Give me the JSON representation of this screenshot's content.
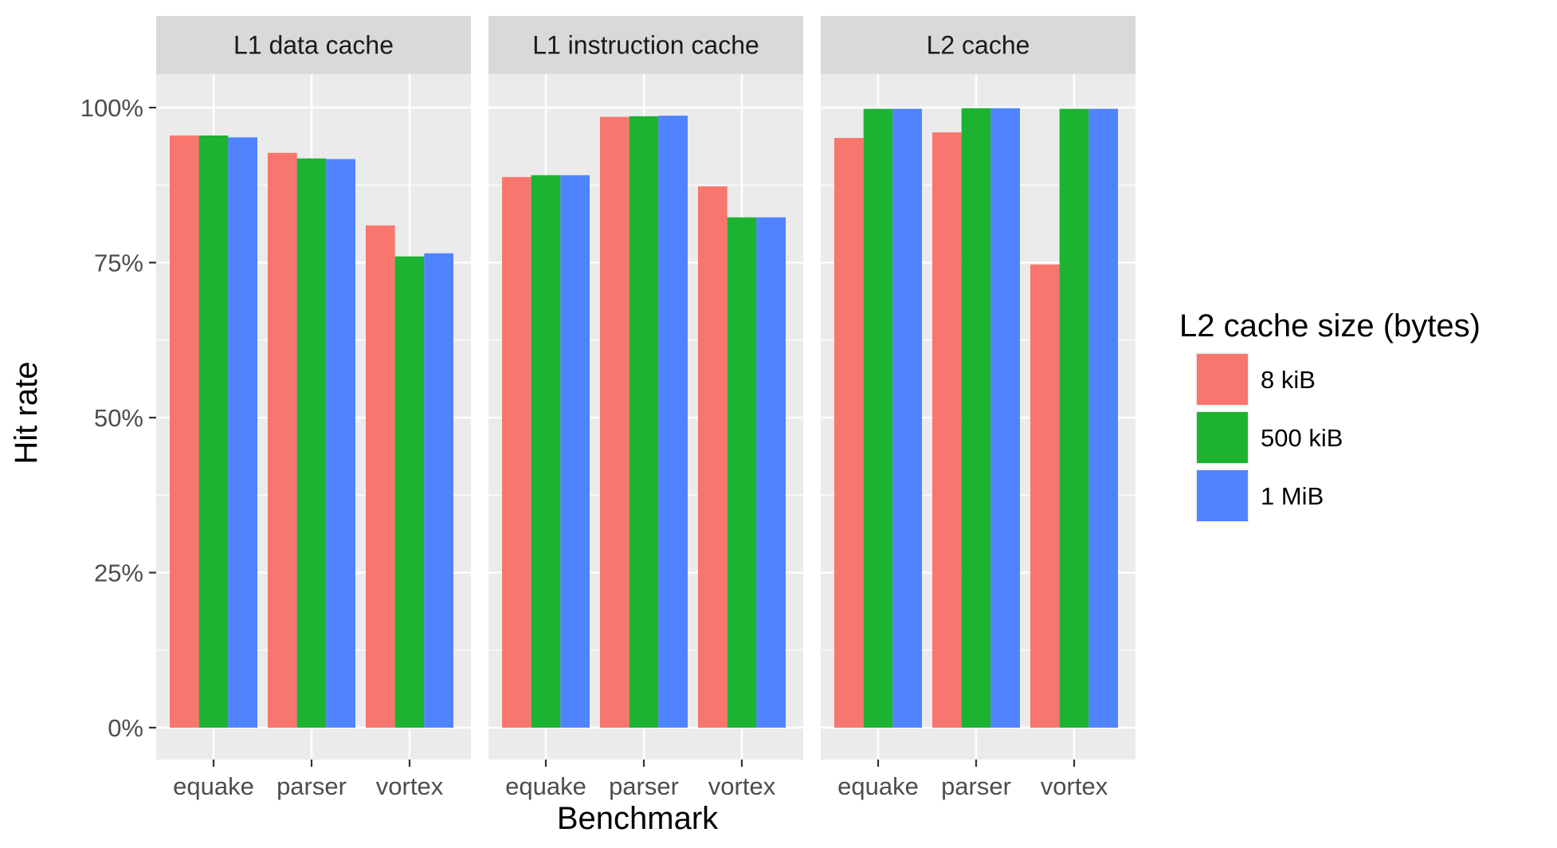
{
  "chart_data": {
    "type": "bar",
    "layout": "faceted grouped bar",
    "facets": [
      "L1 data cache",
      "L1 instruction cache",
      "L2 cache"
    ],
    "categories": [
      "equake",
      "parser",
      "vortex"
    ],
    "xlabel": "Benchmark",
    "ylabel": "Hit rate",
    "ylim": [
      0,
      1.05
    ],
    "yticks": [
      0,
      0.25,
      0.5,
      0.75,
      1.0
    ],
    "ytick_labels": [
      "0%",
      "25%",
      "50%",
      "75%",
      "100%"
    ],
    "grid": true,
    "legend": {
      "title": "L2 cache size (bytes)",
      "position": "right",
      "entries": [
        {
          "label": "8 kiB",
          "color": "#F8766D"
        },
        {
          "label": "500 kiB",
          "color": "#1CB232"
        },
        {
          "label": "1 MiB",
          "color": "#5083FF"
        }
      ]
    },
    "series": [
      {
        "name": "8 kiB",
        "color": "#F8766D",
        "values": [
          [
            0.955,
            0.927,
            0.81
          ],
          [
            0.888,
            0.985,
            0.873
          ],
          [
            0.951,
            0.96,
            0.747
          ]
        ]
      },
      {
        "name": "500 kiB",
        "color": "#1CB232",
        "values": [
          [
            0.955,
            0.918,
            0.76
          ],
          [
            0.891,
            0.986,
            0.823
          ],
          [
            0.998,
            0.999,
            0.998
          ]
        ]
      },
      {
        "name": "1 MiB",
        "color": "#5083FF",
        "values": [
          [
            0.952,
            0.917,
            0.765
          ],
          [
            0.891,
            0.987,
            0.823
          ],
          [
            0.998,
            0.999,
            0.998
          ]
        ]
      }
    ]
  }
}
